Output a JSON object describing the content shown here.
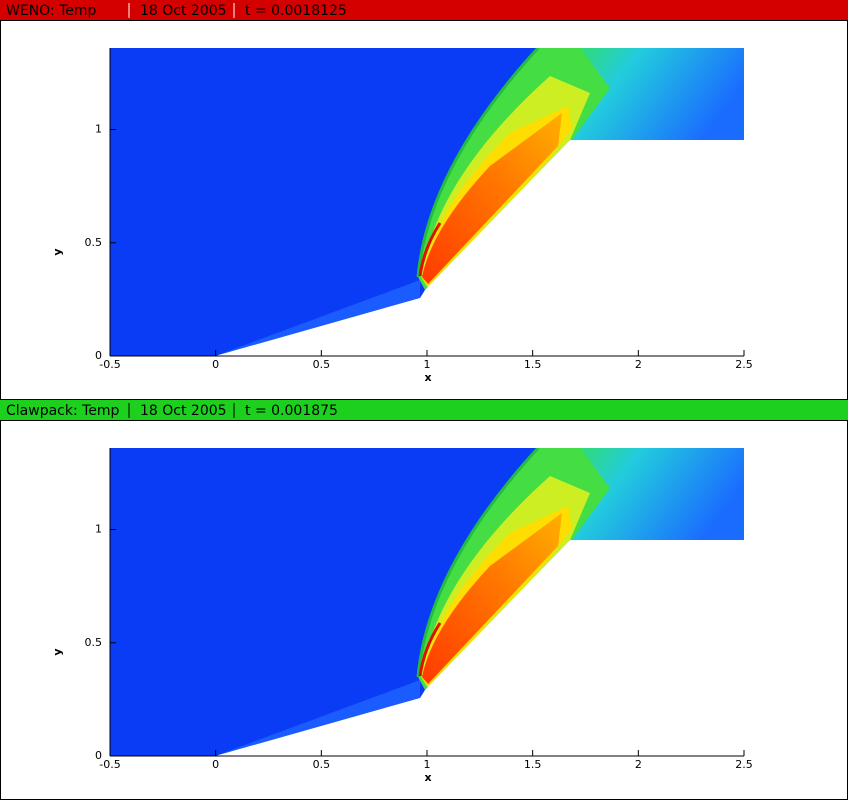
{
  "chart_data": [
    {
      "type": "contour",
      "title": "WENO: Temp",
      "date": "18 Oct 2005",
      "time_label": "t = 0.0018125",
      "header_color": "#d40000",
      "header_text_color": "#ffffff",
      "xlabel": "x",
      "ylabel": "y",
      "xlim": [
        -0.5,
        2.5
      ],
      "xticks": [
        -0.5,
        0,
        0.5,
        1,
        1.5,
        2,
        2.5
      ],
      "ylim": [
        0,
        1.36
      ],
      "yticks": [
        0,
        0.5,
        1
      ]
    },
    {
      "type": "contour",
      "title": "Clawpack: Temp",
      "date": "18 Oct 2005",
      "time_label": "t = 0.001875",
      "header_color": "#1ed01e",
      "header_text_color": "#000000",
      "xlabel": "x",
      "ylabel": "y",
      "xlim": [
        -0.5,
        2.5
      ],
      "xticks": [
        -0.5,
        0,
        0.5,
        1,
        1.5,
        2,
        2.5
      ],
      "ylim": [
        0,
        1.36
      ],
      "yticks": [
        0,
        0.5,
        1
      ]
    }
  ]
}
